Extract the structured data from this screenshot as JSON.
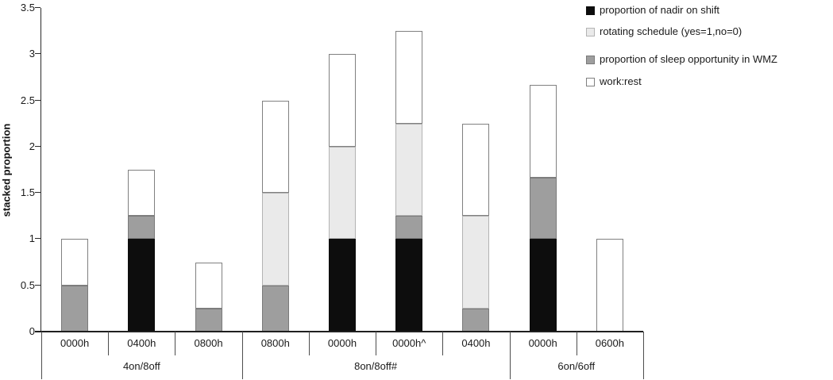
{
  "chart_data": {
    "type": "bar",
    "stacked": true,
    "title": "",
    "ylabel": "stacked proportion",
    "xlabel": "",
    "ylim": [
      0,
      3.5
    ],
    "yticks": [
      "0",
      "0.5",
      "1",
      "1.5",
      "2",
      "2.5",
      "3",
      "3.5"
    ],
    "grid": false,
    "legend_position": "top-right",
    "categories": [
      "0000h",
      "0400h",
      "0800h",
      "0800h",
      "0000h",
      "0000h^",
      "0400h",
      "0000h",
      "0600h"
    ],
    "groups": [
      {
        "label": "4on/8off",
        "count": 3
      },
      {
        "label": "8on/8off#",
        "count": 4
      },
      {
        "label": "6on/6off",
        "count": 2
      }
    ],
    "series": [
      {
        "name": "nadir",
        "fill": "#0d0d0d",
        "border": "#0d0d0d",
        "values": [
          0,
          1,
          0,
          0,
          1,
          1,
          0,
          1,
          0
        ]
      },
      {
        "name": "wmz",
        "fill": "#9e9e9e",
        "border": "#7a7a7a",
        "values": [
          0.5,
          0.25,
          0.25,
          0.5,
          0,
          0.25,
          0.25,
          0.667,
          0
        ]
      },
      {
        "name": "rotating",
        "fill": "#eaeaea",
        "border": "#b3b3b3",
        "values": [
          0,
          0,
          0,
          1,
          1,
          1,
          1,
          0,
          0
        ]
      },
      {
        "name": "work",
        "fill": "#ffffff",
        "border": "#808080",
        "values": [
          0.5,
          0.5,
          0.5,
          1,
          1,
          1,
          1,
          1,
          1
        ]
      }
    ],
    "bar_totals": [
      1,
      1.75,
      0.75,
      2.5,
      3,
      3.25,
      2.25,
      2.67,
      1
    ],
    "legend": [
      {
        "label": "proportion of nadir on shift",
        "fill": "#0d0d0d",
        "border": "#0d0d0d"
      },
      {
        "label": "rotating schedule (yes=1,no=0)",
        "fill": "#eaeaea",
        "border": "#b3b3b3"
      },
      {
        "label": "proportion of sleep opportunity in WMZ",
        "fill": "#9e9e9e",
        "border": "#7a7a7a"
      },
      {
        "label": "work:rest",
        "fill": "#ffffff",
        "border": "#808080"
      }
    ]
  }
}
